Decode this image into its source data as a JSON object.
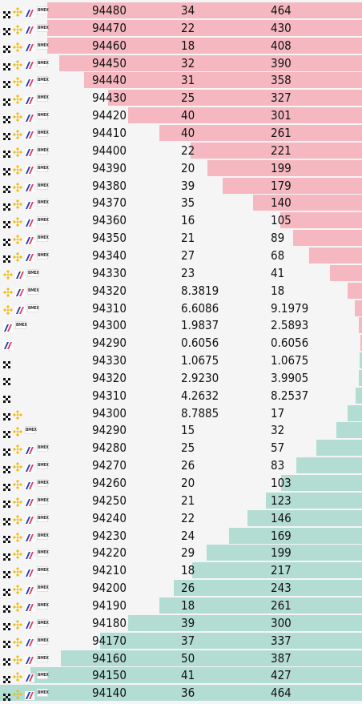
{
  "colors": {
    "ask_bar": "#f5b8c0",
    "bid_bar": "#b3ddd3",
    "background": "#f5f5f5",
    "text": "#111111"
  },
  "exchange_icons": {
    "x": "okx-x-icon",
    "bn": "binance-diamond-icon",
    "cb": "coinbase-stripes-icon",
    "ct": "bitmex-badge-icon"
  },
  "badge_text": "BMEX",
  "asks": [
    {
      "price": "94480",
      "size": "34",
      "total": "464",
      "icons": [
        "x",
        "bn",
        "cb",
        "ct"
      ],
      "depth": 0.87
    },
    {
      "price": "94470",
      "size": "22",
      "total": "430",
      "icons": [
        "x",
        "bn",
        "cb",
        "ct"
      ],
      "depth": 0.87
    },
    {
      "price": "94460",
      "size": "18",
      "total": "408",
      "icons": [
        "x",
        "bn",
        "cb",
        "ct"
      ],
      "depth": 0.87
    },
    {
      "price": "94450",
      "size": "32",
      "total": "390",
      "icons": [
        "x",
        "bn",
        "cb",
        "ct"
      ],
      "depth": 0.836
    },
    {
      "price": "94440",
      "size": "31",
      "total": "358",
      "icons": [
        "x",
        "bn",
        "cb",
        "ct"
      ],
      "depth": 0.767
    },
    {
      "price": "94430",
      "size": "25",
      "total": "327",
      "icons": [
        "x",
        "bn",
        "cb",
        "ct"
      ],
      "depth": 0.701
    },
    {
      "price": "94420",
      "size": "40",
      "total": "301",
      "icons": [
        "x",
        "bn",
        "cb",
        "ct"
      ],
      "depth": 0.645
    },
    {
      "price": "94410",
      "size": "40",
      "total": "261",
      "icons": [
        "x",
        "bn",
        "cb",
        "ct"
      ],
      "depth": 0.559
    },
    {
      "price": "94400",
      "size": "22",
      "total": "221",
      "icons": [
        "x",
        "bn",
        "cb",
        "ct"
      ],
      "depth": 0.474
    },
    {
      "price": "94390",
      "size": "20",
      "total": "199",
      "icons": [
        "x",
        "bn",
        "cb",
        "ct"
      ],
      "depth": 0.427
    },
    {
      "price": "94380",
      "size": "39",
      "total": "179",
      "icons": [
        "x",
        "bn",
        "cb",
        "ct"
      ],
      "depth": 0.384
    },
    {
      "price": "94370",
      "size": "35",
      "total": "140",
      "icons": [
        "x",
        "bn",
        "cb",
        "ct"
      ],
      "depth": 0.3
    },
    {
      "price": "94360",
      "size": "16",
      "total": "105",
      "icons": [
        "x",
        "bn",
        "cb",
        "ct"
      ],
      "depth": 0.225
    },
    {
      "price": "94350",
      "size": "21",
      "total": "89",
      "icons": [
        "x",
        "bn",
        "cb",
        "ct"
      ],
      "depth": 0.191
    },
    {
      "price": "94340",
      "size": "27",
      "total": "68",
      "icons": [
        "x",
        "bn",
        "cb",
        "ct"
      ],
      "depth": 0.146
    },
    {
      "price": "94330",
      "size": "23",
      "total": "41",
      "icons": [
        "bn",
        "cb",
        "ct"
      ],
      "depth": 0.088
    },
    {
      "price": "94320",
      "size": "8.3819",
      "total": "18",
      "icons": [
        "bn",
        "cb",
        "ct"
      ],
      "depth": 0.039
    },
    {
      "price": "94310",
      "size": "6.6086",
      "total": "9.1979",
      "icons": [
        "bn",
        "cb",
        "ct"
      ],
      "depth": 0.02
    },
    {
      "price": "94300",
      "size": "1.9837",
      "total": "2.5893",
      "icons": [
        "cb",
        "ct"
      ],
      "depth": 0.008
    },
    {
      "price": "94290",
      "size": "0.6056",
      "total": "0.6056",
      "icons": [
        "cb"
      ],
      "depth": 0.004
    }
  ],
  "bids": [
    {
      "price": "94330",
      "size": "1.0675",
      "total": "1.0675",
      "icons": [
        "x"
      ],
      "depth": 0.006
    },
    {
      "price": "94320",
      "size": "2.9230",
      "total": "3.9905",
      "icons": [
        "x"
      ],
      "depth": 0.009
    },
    {
      "price": "94310",
      "size": "4.2632",
      "total": "8.2537",
      "icons": [
        "x"
      ],
      "depth": 0.018
    },
    {
      "price": "94300",
      "size": "8.7885",
      "total": "17",
      "icons": [
        "x",
        "bn"
      ],
      "depth": 0.04
    },
    {
      "price": "94290",
      "size": "15",
      "total": "32",
      "icons": [
        "x",
        "bn",
        "ct"
      ],
      "depth": 0.071
    },
    {
      "price": "94280",
      "size": "25",
      "total": "57",
      "icons": [
        "x",
        "bn",
        "cb",
        "ct"
      ],
      "depth": 0.126
    },
    {
      "price": "94270",
      "size": "26",
      "total": "83",
      "icons": [
        "x",
        "bn",
        "cb",
        "ct"
      ],
      "depth": 0.181
    },
    {
      "price": "94260",
      "size": "20",
      "total": "103",
      "icons": [
        "x",
        "bn",
        "cb",
        "ct"
      ],
      "depth": 0.223
    },
    {
      "price": "94250",
      "size": "21",
      "total": "123",
      "icons": [
        "x",
        "bn",
        "cb",
        "ct"
      ],
      "depth": 0.265
    },
    {
      "price": "94240",
      "size": "22",
      "total": "146",
      "icons": [
        "x",
        "bn",
        "cb",
        "ct"
      ],
      "depth": 0.316
    },
    {
      "price": "94230",
      "size": "24",
      "total": "169",
      "icons": [
        "x",
        "bn",
        "cb",
        "ct"
      ],
      "depth": 0.367
    },
    {
      "price": "94220",
      "size": "29",
      "total": "199",
      "icons": [
        "x",
        "bn",
        "cb",
        "ct"
      ],
      "depth": 0.429
    },
    {
      "price": "94210",
      "size": "18",
      "total": "217",
      "icons": [
        "x",
        "bn",
        "cb",
        "ct"
      ],
      "depth": 0.468
    },
    {
      "price": "94200",
      "size": "26",
      "total": "243",
      "icons": [
        "x",
        "bn",
        "cb",
        "ct"
      ],
      "depth": 0.52
    },
    {
      "price": "94190",
      "size": "18",
      "total": "261",
      "icons": [
        "x",
        "bn",
        "cb",
        "ct"
      ],
      "depth": 0.56
    },
    {
      "price": "94180",
      "size": "39",
      "total": "300",
      "icons": [
        "x",
        "bn",
        "cb",
        "ct"
      ],
      "depth": 0.646
    },
    {
      "price": "94170",
      "size": "37",
      "total": "337",
      "icons": [
        "x",
        "bn",
        "cb",
        "ct"
      ],
      "depth": 0.724
    },
    {
      "price": "94160",
      "size": "50",
      "total": "387",
      "icons": [
        "x",
        "bn",
        "cb",
        "ct"
      ],
      "depth": 0.832
    },
    {
      "price": "94150",
      "size": "41",
      "total": "427",
      "icons": [
        "x",
        "bn",
        "cb",
        "ct"
      ],
      "depth": 0.916
    },
    {
      "price": "94140",
      "size": "36",
      "total": "464",
      "icons": [
        "x",
        "bn",
        "cb",
        "ct"
      ],
      "depth": 1.0
    }
  ]
}
